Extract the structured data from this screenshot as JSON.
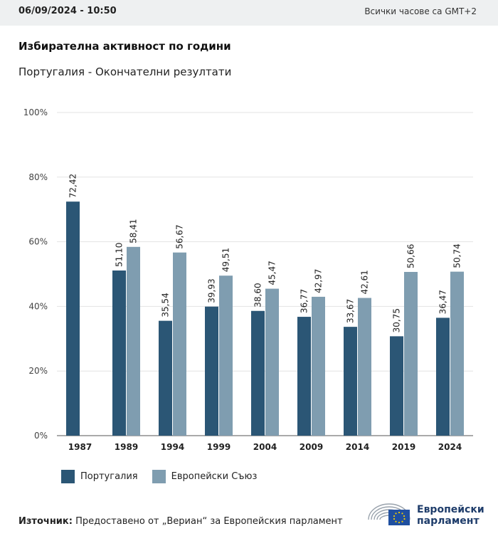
{
  "header": {
    "datetime": "06/09/2024 - 10:50",
    "timezone_note": "Всички часове са GMT+2"
  },
  "title": "Избирателна активност по години",
  "subtitle": "Португалия - Окончателни резултати",
  "colors": {
    "portugal": "#2b5675",
    "eu": "#7f9db0",
    "grid": "#e3e3e3",
    "axis": "#555555"
  },
  "chart_data": {
    "type": "bar",
    "title": "Избирателна активност по години",
    "subtitle": "Португалия - Окончателни резултати",
    "xlabel": "",
    "ylabel": "",
    "ylim": [
      0,
      100
    ],
    "yticks": [
      0,
      20,
      40,
      60,
      80,
      100
    ],
    "ytick_labels": [
      "0%",
      "20%",
      "40%",
      "60%",
      "80%",
      "100%"
    ],
    "categories": [
      "1987",
      "1989",
      "1994",
      "1999",
      "2004",
      "2009",
      "2014",
      "2019",
      "2024"
    ],
    "series": [
      {
        "name": "Португалия",
        "values": [
          72.42,
          51.1,
          35.54,
          39.93,
          38.6,
          36.77,
          33.67,
          30.75,
          36.47
        ],
        "labels": [
          "72,42",
          "51,10",
          "35,54",
          "39,93",
          "38,60",
          "36,77",
          "33,67",
          "30,75",
          "36,47"
        ]
      },
      {
        "name": "Европейски Съюз",
        "values": [
          null,
          58.41,
          56.67,
          49.51,
          45.47,
          42.97,
          42.61,
          50.66,
          50.74
        ],
        "labels": [
          null,
          "58,41",
          "56,67",
          "49,51",
          "45,47",
          "42,97",
          "42,61",
          "50,66",
          "50,74"
        ]
      }
    ],
    "legend_position": "bottom-left"
  },
  "legend": {
    "portugal": "Португалия",
    "eu": "Европейски Съюз"
  },
  "footer": {
    "source_label": "Източник:",
    "source_text": " Предоставено от „Вериан“ за Европейския парламент",
    "logo_line1": "Европейски",
    "logo_line2": "парламент"
  }
}
